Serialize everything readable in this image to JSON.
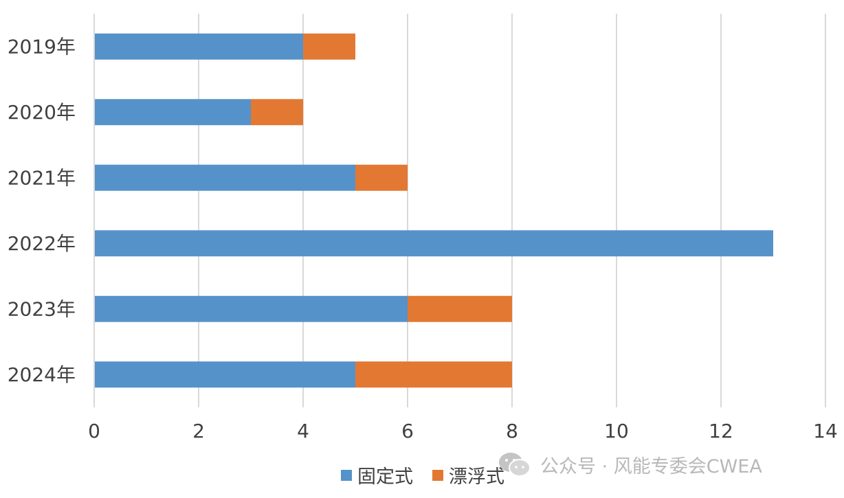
{
  "chart_data": {
    "type": "bar",
    "orientation": "horizontal",
    "stacked": true,
    "categories": [
      "2019年",
      "2020年",
      "2021年",
      "2022年",
      "2023年",
      "2024年"
    ],
    "series": [
      {
        "name": "固定式",
        "color": "#5592C9",
        "values": [
          4,
          3,
          5,
          13,
          6,
          5
        ]
      },
      {
        "name": "漂浮式",
        "color": "#E27832",
        "values": [
          1,
          1,
          1,
          0,
          2,
          3
        ]
      }
    ],
    "xlim": [
      0,
      14
    ],
    "xticks": [
      0,
      2,
      4,
      6,
      8,
      10,
      12,
      14
    ],
    "grid": true,
    "legend_position": "bottom"
  },
  "watermark": {
    "text": "公众号 · 风能专委会CWEA",
    "icon": "wechat-icon"
  }
}
